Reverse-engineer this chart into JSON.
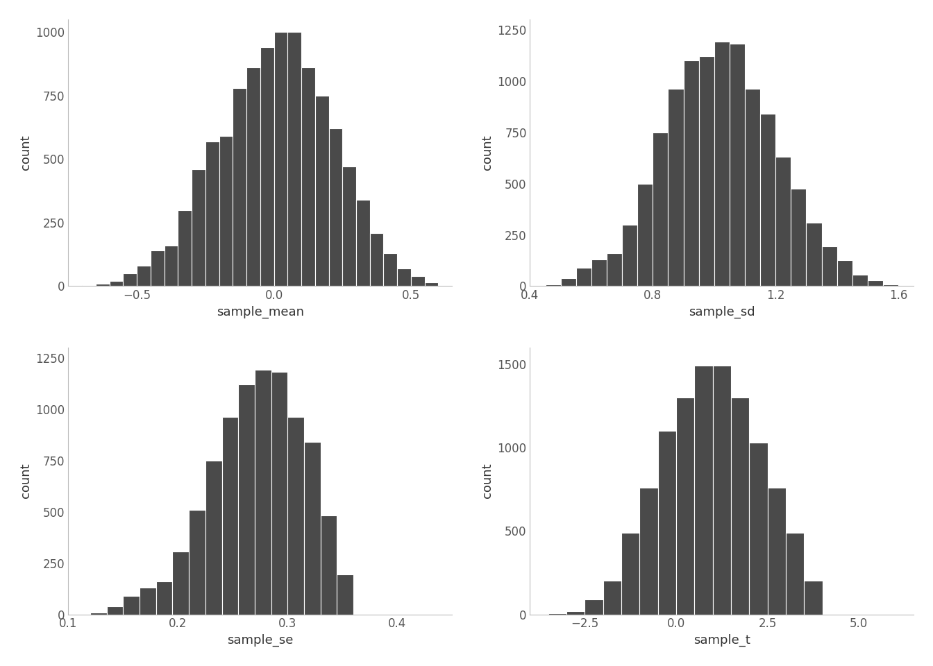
{
  "subplots": [
    {
      "xlabel": "sample_mean",
      "ylabel": "count",
      "xlim": [
        -0.75,
        0.65
      ],
      "ylim": [
        0,
        1050
      ],
      "xticks": [
        -0.5,
        0.0,
        0.5
      ],
      "yticks": [
        0,
        250,
        500,
        750,
        1000
      ],
      "bin_edges": [
        -0.75,
        -0.7,
        -0.65,
        -0.6,
        -0.55,
        -0.5,
        -0.45,
        -0.4,
        -0.35,
        -0.3,
        -0.25,
        -0.2,
        -0.15,
        -0.1,
        -0.05,
        0.0,
        0.05,
        0.1,
        0.15,
        0.2,
        0.25,
        0.3,
        0.35,
        0.4,
        0.45,
        0.5,
        0.55,
        0.6,
        0.65
      ],
      "counts": [
        5,
        5,
        10,
        20,
        50,
        80,
        140,
        160,
        300,
        460,
        570,
        590,
        780,
        860,
        940,
        1000,
        1000,
        860,
        750,
        620,
        470,
        340,
        210,
        130,
        70,
        40,
        15,
        5
      ]
    },
    {
      "xlabel": "sample_sd",
      "ylabel": "count",
      "xlim": [
        0.4,
        1.65
      ],
      "ylim": [
        0,
        1300
      ],
      "xticks": [
        0.4,
        0.8,
        1.2,
        1.6
      ],
      "yticks": [
        0,
        250,
        500,
        750,
        1000,
        1250
      ],
      "bin_edges": [
        0.45,
        0.5,
        0.55,
        0.6,
        0.65,
        0.7,
        0.75,
        0.8,
        0.85,
        0.9,
        0.95,
        1.0,
        1.05,
        1.1,
        1.15,
        1.2,
        1.25,
        1.3,
        1.35,
        1.4,
        1.45,
        1.5,
        1.55,
        1.6
      ],
      "counts": [
        10,
        40,
        90,
        130,
        160,
        300,
        500,
        750,
        960,
        1100,
        1120,
        1190,
        1180,
        960,
        840,
        630,
        475,
        310,
        195,
        125,
        55,
        30,
        10
      ]
    },
    {
      "xlabel": "sample_se",
      "ylabel": "count",
      "xlim": [
        0.1,
        0.45
      ],
      "ylim": [
        0,
        1300
      ],
      "xticks": [
        0.1,
        0.2,
        0.3,
        0.4
      ],
      "yticks": [
        0,
        250,
        500,
        750,
        1000,
        1250
      ],
      "bin_edges": [
        0.12,
        0.135,
        0.15,
        0.165,
        0.18,
        0.195,
        0.21,
        0.225,
        0.24,
        0.255,
        0.27,
        0.285,
        0.3,
        0.315,
        0.33,
        0.345,
        0.36
      ],
      "counts": [
        10,
        40,
        90,
        130,
        160,
        305,
        510,
        750,
        960,
        1120,
        1190,
        1180,
        960,
        840,
        480,
        195
      ]
    },
    {
      "xlabel": "sample_t",
      "ylabel": "count",
      "xlim": [
        -4.0,
        6.5
      ],
      "ylim": [
        0,
        1600
      ],
      "xticks": [
        -2.5,
        0.0,
        2.5,
        5.0
      ],
      "yticks": [
        0,
        500,
        1000,
        1500
      ],
      "bin_edges": [
        -3.5,
        -3.0,
        -2.5,
        -2.0,
        -1.5,
        -1.0,
        -0.5,
        0.0,
        0.5,
        1.0,
        1.5,
        2.0,
        2.5,
        3.0,
        3.5,
        4.0
      ],
      "counts": [
        5,
        20,
        90,
        200,
        490,
        760,
        1100,
        1300,
        1490,
        1490,
        1300,
        1030,
        760,
        490,
        200
      ]
    }
  ],
  "bar_color": "#4a4a4a",
  "bar_edge_color": "#ffffff",
  "bar_linewidth": 0.8,
  "background_color": "#ffffff",
  "font_size": 12,
  "label_font_size": 13
}
